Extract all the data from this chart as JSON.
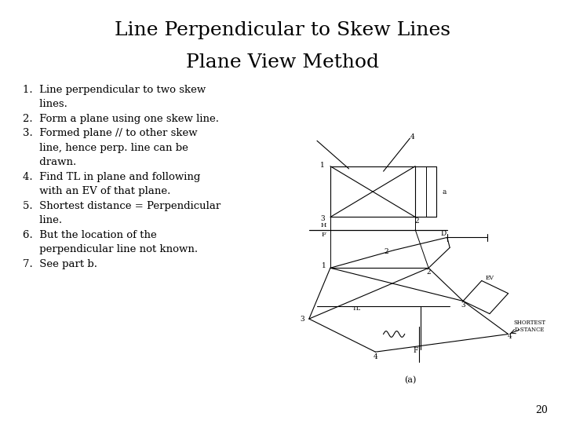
{
  "title_line1": "Line Perpendicular to Skew Lines",
  "title_line2": "Plane View Method",
  "title_fontsize": 18,
  "bullet_fontsize": 9.5,
  "background_color": "#ffffff",
  "text_color": "#000000",
  "page_number": "20",
  "diagram_label": "(a)",
  "bullet_points": [
    "1.  Line perpendicular to two skew\n     lines.",
    "2.  Form a plane using one skew line.",
    "3.  Formed plane // to other skew\n     line, hence perp. line can be\n     drawn.",
    "4.  Find TL in plane and following\n     with an EV of that plane.",
    "5.  Shortest distance = Perpendicular\n     line.",
    "6.  But the location of the\n     perpendicular line not known.",
    "7.  See part b."
  ]
}
